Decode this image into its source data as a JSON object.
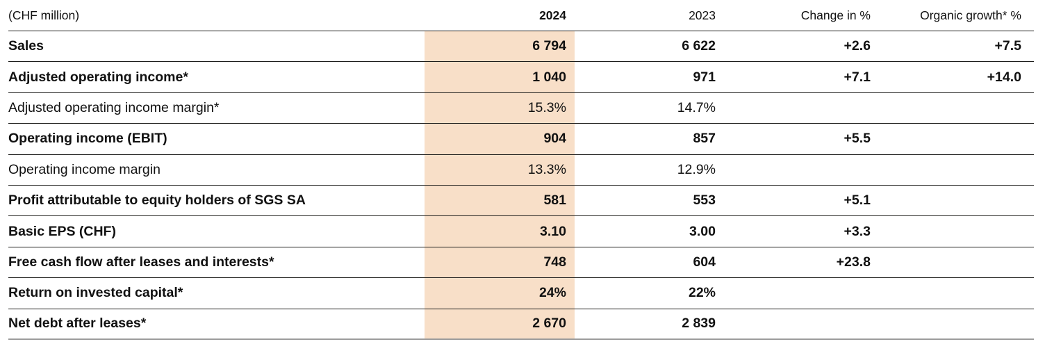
{
  "table": {
    "unit_label": "(CHF million)",
    "highlight_color": "#f8dfc8",
    "columns": {
      "y2024": "2024",
      "y2023": "2023",
      "change": "Change in %",
      "organic": "Organic growth* %"
    },
    "rows": [
      {
        "label": "Sales",
        "bold": true,
        "y2024": "6 794",
        "y2023": "6 622",
        "change": "+2.6",
        "organic": "+7.5"
      },
      {
        "label": "Adjusted operating income*",
        "bold": true,
        "y2024": "1 040",
        "y2023": "971",
        "change": "+7.1",
        "organic": "+14.0"
      },
      {
        "label": "Adjusted operating income margin*",
        "bold": false,
        "y2024": "15.3%",
        "y2023": "14.7%",
        "change": "",
        "organic": ""
      },
      {
        "label": "Operating income (EBIT)",
        "bold": true,
        "y2024": "904",
        "y2023": "857",
        "change": "+5.5",
        "organic": ""
      },
      {
        "label": "Operating income margin",
        "bold": false,
        "y2024": "13.3%",
        "y2023": "12.9%",
        "change": "",
        "organic": ""
      },
      {
        "label": "Profit attributable to equity holders of SGS SA",
        "bold": true,
        "y2024": "581",
        "y2023": "553",
        "change": "+5.1",
        "organic": ""
      },
      {
        "label": "Basic EPS (CHF)",
        "bold": true,
        "y2024": "3.10",
        "y2023": "3.00",
        "change": "+3.3",
        "organic": ""
      },
      {
        "label": "Free cash flow after leases and interests*",
        "bold": true,
        "y2024": "748",
        "y2023": "604",
        "change": "+23.8",
        "organic": ""
      },
      {
        "label": "Return on invested capital*",
        "bold": true,
        "y2024": "24%",
        "y2023": "22%",
        "change": "",
        "organic": ""
      },
      {
        "label": "Net debt after leases*",
        "bold": true,
        "y2024": "2 670",
        "y2023": "2 839",
        "change": "",
        "organic": ""
      }
    ]
  }
}
